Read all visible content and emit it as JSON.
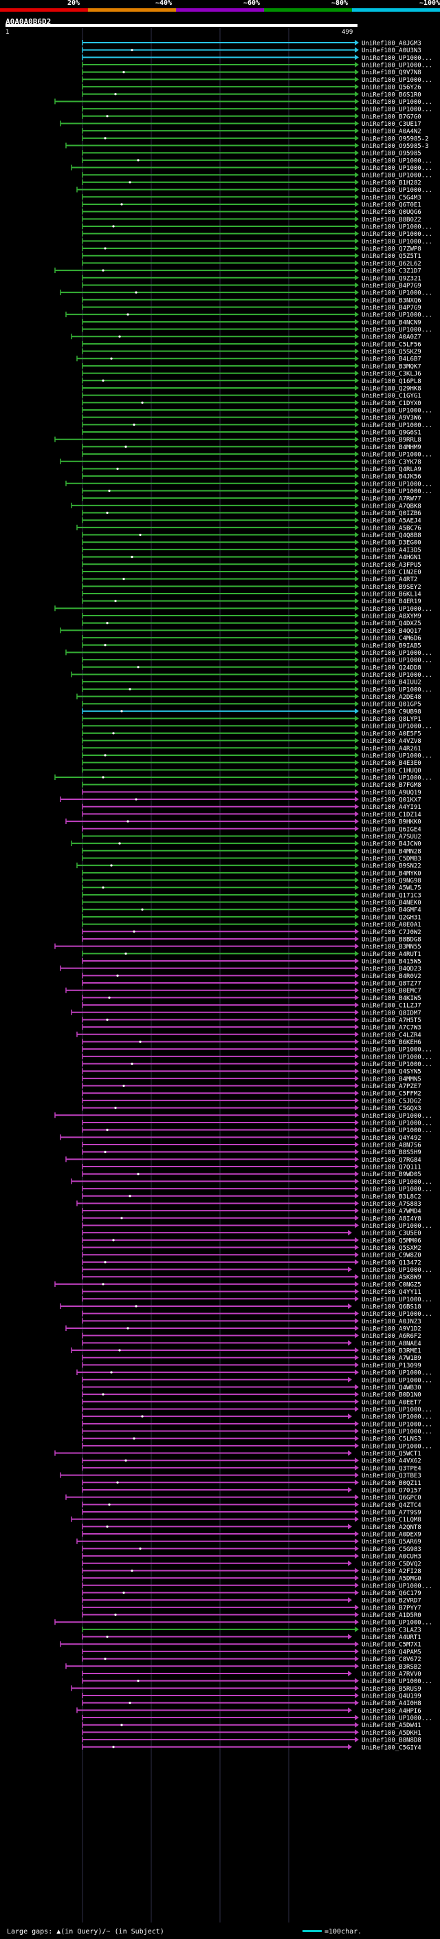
{
  "scale": {
    "labels": [
      "20%",
      "~40%",
      "~60%",
      "~80%",
      "~100%"
    ],
    "colors": [
      "#e00000",
      "#e08000",
      "#9000c0",
      "#009000",
      "#00c0e0"
    ]
  },
  "query": {
    "id": "A0A0A0B6D2",
    "start": "1",
    "end": "499"
  },
  "palette": {
    "cyan": "#29c5e6",
    "green": "#35b035",
    "magenta": "#c040c0",
    "grid": "#303048",
    "dot": "#ffffff"
  },
  "hits": [
    {
      "label": "UniRef100_A0JGM3",
      "color": "cyan"
    },
    {
      "label": "UniRef100_A0U3N3",
      "color": "cyan"
    },
    {
      "label": "UniRef100_UP1000...",
      "color": "cyan"
    },
    {
      "label": "UniRef100_UP1000...",
      "color": "green"
    },
    {
      "label": "UniRef100_Q9V7N8",
      "color": "green"
    },
    {
      "label": "UniRef100_UP1000...",
      "color": "green"
    },
    {
      "label": "UniRef100_Q56Y26",
      "color": "green"
    },
    {
      "label": "UniRef100_B6S1R0",
      "color": "green"
    },
    {
      "label": "UniRef100_UP1000...",
      "color": "green"
    },
    {
      "label": "UniRef100_UP1000...",
      "color": "green"
    },
    {
      "label": "UniRef100_B7G7G0",
      "color": "green"
    },
    {
      "label": "UniRef100_C3UE17",
      "color": "green"
    },
    {
      "label": "UniRef100_A0A4N2",
      "color": "green"
    },
    {
      "label": "UniRef100_O95985-2",
      "color": "green"
    },
    {
      "label": "UniRef100_O95985-3",
      "color": "green"
    },
    {
      "label": "UniRef100_O95985",
      "color": "green"
    },
    {
      "label": "UniRef100_UP1000...",
      "color": "green"
    },
    {
      "label": "UniRef100_UP1000...",
      "color": "green"
    },
    {
      "label": "UniRef100_UP1000...",
      "color": "green"
    },
    {
      "label": "UniRef100_B1H282",
      "color": "green"
    },
    {
      "label": "UniRef100_UP1000...",
      "color": "green"
    },
    {
      "label": "UniRef100_C5G4M3",
      "color": "green"
    },
    {
      "label": "UniRef100_Q6T0E1",
      "color": "green"
    },
    {
      "label": "UniRef100_Q0UQG6",
      "color": "green"
    },
    {
      "label": "UniRef100_B8B0Z2",
      "color": "green"
    },
    {
      "label": "UniRef100_UP1000...",
      "color": "green"
    },
    {
      "label": "UniRef100_UP1000...",
      "color": "green"
    },
    {
      "label": "UniRef100_UP1000...",
      "color": "green"
    },
    {
      "label": "UniRef100_Q7ZWP8",
      "color": "green"
    },
    {
      "label": "UniRef100_Q5Z5T1",
      "color": "green"
    },
    {
      "label": "UniRef100_Q62L62",
      "color": "green"
    },
    {
      "label": "UniRef100_C3Z1D7",
      "color": "green"
    },
    {
      "label": "UniRef100_Q9Z321",
      "color": "green"
    },
    {
      "label": "UniRef100_B4P7G9",
      "color": "green"
    },
    {
      "label": "UniRef100_UP1000...",
      "color": "green"
    },
    {
      "label": "UniRef100_B3NXQ6",
      "color": "green"
    },
    {
      "label": "UniRef100_B4P7G9",
      "color": "green"
    },
    {
      "label": "UniRef100_UP1000...",
      "color": "green"
    },
    {
      "label": "UniRef100_B4NCN9",
      "color": "green"
    },
    {
      "label": "UniRef100_UP1000...",
      "color": "green"
    },
    {
      "label": "UniRef100_A0A0Z7",
      "color": "green"
    },
    {
      "label": "UniRef100_C5LF56",
      "color": "green"
    },
    {
      "label": "UniRef100_Q5SKZ9",
      "color": "green"
    },
    {
      "label": "UniRef100_B4L6B7",
      "color": "green"
    },
    {
      "label": "UniRef100_B3MQK7",
      "color": "green"
    },
    {
      "label": "UniRef100_C3KLJ6",
      "color": "green"
    },
    {
      "label": "UniRef100_Q16PL8",
      "color": "green"
    },
    {
      "label": "UniRef100_Q29HK8",
      "color": "green"
    },
    {
      "label": "UniRef100_C1GYG1",
      "color": "green"
    },
    {
      "label": "UniRef100_C1DYX0",
      "color": "green"
    },
    {
      "label": "UniRef100_UP1000...",
      "color": "green"
    },
    {
      "label": "UniRef100_A9V3W6",
      "color": "green"
    },
    {
      "label": "UniRef100_UP1000...",
      "color": "green"
    },
    {
      "label": "UniRef100_Q9G6S1",
      "color": "green"
    },
    {
      "label": "UniRef100_B9RRL8",
      "color": "green"
    },
    {
      "label": "UniRef100_B4MHM9",
      "color": "green"
    },
    {
      "label": "UniRef100_UP1000...",
      "color": "green"
    },
    {
      "label": "UniRef100_C3YK78",
      "color": "green"
    },
    {
      "label": "UniRef100_Q4RLA9",
      "color": "green"
    },
    {
      "label": "UniRef100_B4JK56",
      "color": "green"
    },
    {
      "label": "UniRef100_UP1000...",
      "color": "green"
    },
    {
      "label": "UniRef100_UP1000...",
      "color": "green"
    },
    {
      "label": "UniRef100_A7RW77",
      "color": "green"
    },
    {
      "label": "UniRef100_A7QBK8",
      "color": "green"
    },
    {
      "label": "UniRef100_Q0IZB6",
      "color": "green"
    },
    {
      "label": "UniRef100_A5AEJ4",
      "color": "green"
    },
    {
      "label": "UniRef100_A5BC76",
      "color": "green"
    },
    {
      "label": "UniRef100_Q4Q8B8",
      "color": "green"
    },
    {
      "label": "UniRef100_D3EG00",
      "color": "green"
    },
    {
      "label": "UniRef100_A4I3D5",
      "color": "green"
    },
    {
      "label": "UniRef100_A4HGN1",
      "color": "green"
    },
    {
      "label": "UniRef100_A3FPU5",
      "color": "green"
    },
    {
      "label": "UniRef100_C1N2E0",
      "color": "green"
    },
    {
      "label": "UniRef100_A4RT2",
      "color": "green"
    },
    {
      "label": "UniRef100_B9SEY2",
      "color": "green"
    },
    {
      "label": "UniRef100_B6KL14",
      "color": "green"
    },
    {
      "label": "UniRef100_B4ER19",
      "color": "green"
    },
    {
      "label": "UniRef100_UP1000...",
      "color": "green"
    },
    {
      "label": "UniRef100_A8XYM9",
      "color": "green"
    },
    {
      "label": "UniRef100_Q4DXZ5",
      "color": "green"
    },
    {
      "label": "UniRef100_B4QQ17",
      "color": "green"
    },
    {
      "label": "UniRef100_C4M6D6",
      "color": "green"
    },
    {
      "label": "UniRef100_B9IAB5",
      "color": "green"
    },
    {
      "label": "UniRef100_UP1000...",
      "color": "green"
    },
    {
      "label": "UniRef100_UP1000...",
      "color": "green"
    },
    {
      "label": "UniRef100_Q24DD8",
      "color": "green"
    },
    {
      "label": "UniRef100_UP1000...",
      "color": "green"
    },
    {
      "label": "UniRef100_B4IUU2",
      "color": "green"
    },
    {
      "label": "UniRef100_UP1000...",
      "color": "green"
    },
    {
      "label": "UniRef100_A2DE48",
      "color": "green"
    },
    {
      "label": "UniRef100_Q01GP5",
      "color": "green"
    },
    {
      "label": "UniRef100_C9UB98",
      "color": "cyan"
    },
    {
      "label": "UniRef100_Q8LYP1",
      "color": "green"
    },
    {
      "label": "UniRef100_UP1000...",
      "color": "green"
    },
    {
      "label": "UniRef100_A0E5F5",
      "color": "green"
    },
    {
      "label": "UniRef100_A4VZV8",
      "color": "green"
    },
    {
      "label": "UniRef100_A4R261",
      "color": "green"
    },
    {
      "label": "UniRef100_UP1000...",
      "color": "green"
    },
    {
      "label": "UniRef100_B4E3E0",
      "color": "green"
    },
    {
      "label": "UniRef100_C1HUQ0",
      "color": "green"
    },
    {
      "label": "UniRef100_UP1000...",
      "color": "green"
    },
    {
      "label": "UniRef100_B7FGM8",
      "color": "green"
    },
    {
      "label": "UniRef100_A9UQ19",
      "color": "magenta"
    },
    {
      "label": "UniRef100_Q01KX7",
      "color": "magenta"
    },
    {
      "label": "UniRef100_A4YI91",
      "color": "magenta"
    },
    {
      "label": "UniRef100_C1DZ14",
      "color": "magenta"
    },
    {
      "label": "UniRef100_B9HKK0",
      "color": "magenta"
    },
    {
      "label": "UniRef100_Q6IGE4",
      "color": "magenta"
    },
    {
      "label": "UniRef100_A7SUU2",
      "color": "green"
    },
    {
      "label": "UniRef100_B4JCW0",
      "color": "green"
    },
    {
      "label": "UniRef100_B4MN28",
      "color": "green"
    },
    {
      "label": "UniRef100_C5DMB3",
      "color": "green"
    },
    {
      "label": "UniRef100_B9SN22",
      "color": "green"
    },
    {
      "label": "UniRef100_B4MYK0",
      "color": "green"
    },
    {
      "label": "UniRef100_Q9NG98",
      "color": "green"
    },
    {
      "label": "UniRef100_A5WL75",
      "color": "green"
    },
    {
      "label": "UniRef100_Q171C3",
      "color": "green"
    },
    {
      "label": "UniRef100_B4NEK0",
      "color": "green"
    },
    {
      "label": "UniRef100_B4GMF4",
      "color": "green"
    },
    {
      "label": "UniRef100_Q2GH31",
      "color": "green"
    },
    {
      "label": "UniRef100_A0E0A1",
      "color": "green"
    },
    {
      "label": "UniRef100_C7J0W2",
      "color": "magenta"
    },
    {
      "label": "UniRef100_B8BDG8",
      "color": "magenta"
    },
    {
      "label": "UniRef100_B3MN55",
      "color": "magenta"
    },
    {
      "label": "UniRef100_A4RUT1",
      "color": "green"
    },
    {
      "label": "UniRef100_B415W5",
      "color": "magenta"
    },
    {
      "label": "UniRef100_B4QD23",
      "color": "magenta"
    },
    {
      "label": "UniRef100_B4R0V2",
      "color": "magenta"
    },
    {
      "label": "UniRef100_Q8TZ77",
      "color": "magenta"
    },
    {
      "label": "UniRef100_B0EMC7",
      "color": "magenta"
    },
    {
      "label": "UniRef100_B4KIW5",
      "color": "magenta"
    },
    {
      "label": "UniRef100_C1LZJ7",
      "color": "magenta"
    },
    {
      "label": "UniRef100_Q8IDM7",
      "color": "magenta"
    },
    {
      "label": "UniRef100_A7H5T5",
      "color": "magenta"
    },
    {
      "label": "UniRef100_A7C7W3",
      "color": "magenta"
    },
    {
      "label": "UniRef100_C4LZR4",
      "color": "magenta"
    },
    {
      "label": "UniRef100_B6KEH6",
      "color": "magenta"
    },
    {
      "label": "UniRef100_UP1000...",
      "color": "magenta"
    },
    {
      "label": "UniRef100_UP1000...",
      "color": "magenta"
    },
    {
      "label": "UniRef100_UP1000...",
      "color": "magenta"
    },
    {
      "label": "UniRef100_Q4SYN5",
      "color": "magenta"
    },
    {
      "label": "UniRef100_B4MMN5",
      "color": "magenta"
    },
    {
      "label": "UniRef100_A7PZE7",
      "color": "magenta"
    },
    {
      "label": "UniRef100_C5FFM2",
      "color": "magenta"
    },
    {
      "label": "UniRef100_C5JDG2",
      "color": "magenta"
    },
    {
      "label": "UniRef100_C5GQX3",
      "color": "magenta"
    },
    {
      "label": "UniRef100_UP1000...",
      "color": "magenta"
    },
    {
      "label": "UniRef100_UP1000...",
      "color": "magenta"
    },
    {
      "label": "UniRef100_UP1000...",
      "color": "magenta"
    },
    {
      "label": "UniRef100_Q4Y492",
      "color": "magenta"
    },
    {
      "label": "UniRef100_A8N7S6",
      "color": "magenta"
    },
    {
      "label": "UniRef100_B8S5H9",
      "color": "magenta"
    },
    {
      "label": "UniRef100_Q7RG84",
      "color": "magenta"
    },
    {
      "label": "UniRef100_Q7Q111",
      "color": "magenta"
    },
    {
      "label": "UniRef100_B9WD05",
      "color": "magenta"
    },
    {
      "label": "UniRef100_UP1000...",
      "color": "magenta"
    },
    {
      "label": "UniRef100_UP1000...",
      "color": "magenta"
    },
    {
      "label": "UniRef100_B3L8C2",
      "color": "magenta"
    },
    {
      "label": "UniRef100_A7S883",
      "color": "magenta"
    },
    {
      "label": "UniRef100_A7WMD4",
      "color": "magenta"
    },
    {
      "label": "UniRef100_A8I4Y8",
      "color": "magenta"
    },
    {
      "label": "UniRef100_UP1000...",
      "color": "magenta"
    },
    {
      "label": "UniRef100_C3U5E0",
      "color": "magenta"
    },
    {
      "label": "UniRef100_Q5MM06",
      "color": "magenta"
    },
    {
      "label": "UniRef100_Q5SXM2",
      "color": "magenta"
    },
    {
      "label": "UniRef100_C9W8Z0",
      "color": "magenta"
    },
    {
      "label": "UniRef100_Q13472",
      "color": "magenta"
    },
    {
      "label": "UniRef100_UP1000...",
      "color": "magenta"
    },
    {
      "label": "UniRef100_A5K8W9",
      "color": "magenta"
    },
    {
      "label": "UniRef100_C0NGZ5",
      "color": "magenta"
    },
    {
      "label": "UniRef100_Q4YY11",
      "color": "magenta"
    },
    {
      "label": "UniRef100_UP1000...",
      "color": "magenta"
    },
    {
      "label": "UniRef100_Q6BS18",
      "color": "magenta"
    },
    {
      "label": "UniRef100_UP1000...",
      "color": "magenta"
    },
    {
      "label": "UniRef100_A0JNZ3",
      "color": "magenta"
    },
    {
      "label": "UniRef100_A9V1D2",
      "color": "magenta"
    },
    {
      "label": "UniRef100_A6R6F2",
      "color": "magenta"
    },
    {
      "label": "UniRef100_A8NAE4",
      "color": "magenta"
    },
    {
      "label": "UniRef100_B3RME1",
      "color": "magenta"
    },
    {
      "label": "UniRef100_A7W1B9",
      "color": "magenta"
    },
    {
      "label": "UniRef100_P13099",
      "color": "magenta"
    },
    {
      "label": "UniRef100_UP1000...",
      "color": "magenta"
    },
    {
      "label": "UniRef100_UP1000...",
      "color": "magenta"
    },
    {
      "label": "UniRef100_Q4WB30",
      "color": "magenta"
    },
    {
      "label": "UniRef100_B0D1N0",
      "color": "magenta"
    },
    {
      "label": "UniRef100_A0EET7",
      "color": "magenta"
    },
    {
      "label": "UniRef100_UP1000...",
      "color": "magenta"
    },
    {
      "label": "UniRef100_UP1000...",
      "color": "magenta"
    },
    {
      "label": "UniRef100_UP1000...",
      "color": "magenta"
    },
    {
      "label": "UniRef100_UP1000...",
      "color": "magenta"
    },
    {
      "label": "UniRef100_C5LNS3",
      "color": "magenta"
    },
    {
      "label": "UniRef100_UP1000...",
      "color": "magenta"
    },
    {
      "label": "UniRef100_Q5WCT1",
      "color": "magenta"
    },
    {
      "label": "UniRef100_A4VX62",
      "color": "magenta"
    },
    {
      "label": "UniRef100_Q3TPE4",
      "color": "magenta"
    },
    {
      "label": "UniRef100_Q3TBE3",
      "color": "magenta"
    },
    {
      "label": "UniRef100_B0QZ11",
      "color": "magenta"
    },
    {
      "label": "UniRef100_O70157",
      "color": "magenta"
    },
    {
      "label": "UniRef100_Q6GPC0",
      "color": "magenta"
    },
    {
      "label": "UniRef100_Q4ZTC4",
      "color": "magenta"
    },
    {
      "label": "UniRef100_A7T9S9",
      "color": "magenta"
    },
    {
      "label": "UniRef100_C1LQM8",
      "color": "magenta"
    },
    {
      "label": "UniRef100_A2QNT8",
      "color": "magenta"
    },
    {
      "label": "UniRef100_A0DEX9",
      "color": "magenta"
    },
    {
      "label": "UniRef100_Q5AR69",
      "color": "magenta"
    },
    {
      "label": "UniRef100_C5G983",
      "color": "magenta"
    },
    {
      "label": "UniRef100_A0CUH3",
      "color": "magenta"
    },
    {
      "label": "UniRef100_C5DVQ2",
      "color": "magenta"
    },
    {
      "label": "UniRef100_A2FI28",
      "color": "magenta"
    },
    {
      "label": "UniRef100_A5DMG0",
      "color": "magenta"
    },
    {
      "label": "UniRef100_UP1000...",
      "color": "magenta"
    },
    {
      "label": "UniRef100_Q6C179",
      "color": "magenta"
    },
    {
      "label": "UniRef100_B2VRD7",
      "color": "magenta"
    },
    {
      "label": "UniRef100_B7PYY7",
      "color": "magenta"
    },
    {
      "label": "UniRef100_A1D5R0",
      "color": "magenta"
    },
    {
      "label": "UniRef100_UP1000...",
      "color": "magenta"
    },
    {
      "label": "UniRef100_C3LAZ3",
      "color": "green"
    },
    {
      "label": "UniRef100_A4URT1",
      "color": "magenta"
    },
    {
      "label": "UniRef100_C5M7X1",
      "color": "magenta"
    },
    {
      "label": "UniRef100_Q4PAM5",
      "color": "magenta"
    },
    {
      "label": "UniRef100_C8V672",
      "color": "magenta"
    },
    {
      "label": "UniRef100_B3RSB2",
      "color": "magenta"
    },
    {
      "label": "UniRef100_A7RVV0",
      "color": "magenta"
    },
    {
      "label": "UniRef100_UP1000...",
      "color": "magenta"
    },
    {
      "label": "UniRef100_B5RUS9",
      "color": "magenta"
    },
    {
      "label": "UniRef100_Q4U199",
      "color": "magenta"
    },
    {
      "label": "UniRef100_A4I0H8",
      "color": "magenta"
    },
    {
      "label": "UniRef100_A4HPI6",
      "color": "magenta"
    },
    {
      "label": "UniRef100_UP1000...",
      "color": "magenta"
    },
    {
      "label": "UniRef100_A5DW41",
      "color": "magenta"
    },
    {
      "label": "UniRef100_A5DKH1",
      "color": "magenta"
    },
    {
      "label": "UniRef100_B8N8D8",
      "color": "magenta"
    },
    {
      "label": "UniRef100_C5GIY4",
      "color": "magenta"
    }
  ],
  "footer": {
    "text": "Large gaps: ▲(in Query)/~ (in Subject)",
    "legend": "=100char."
  }
}
